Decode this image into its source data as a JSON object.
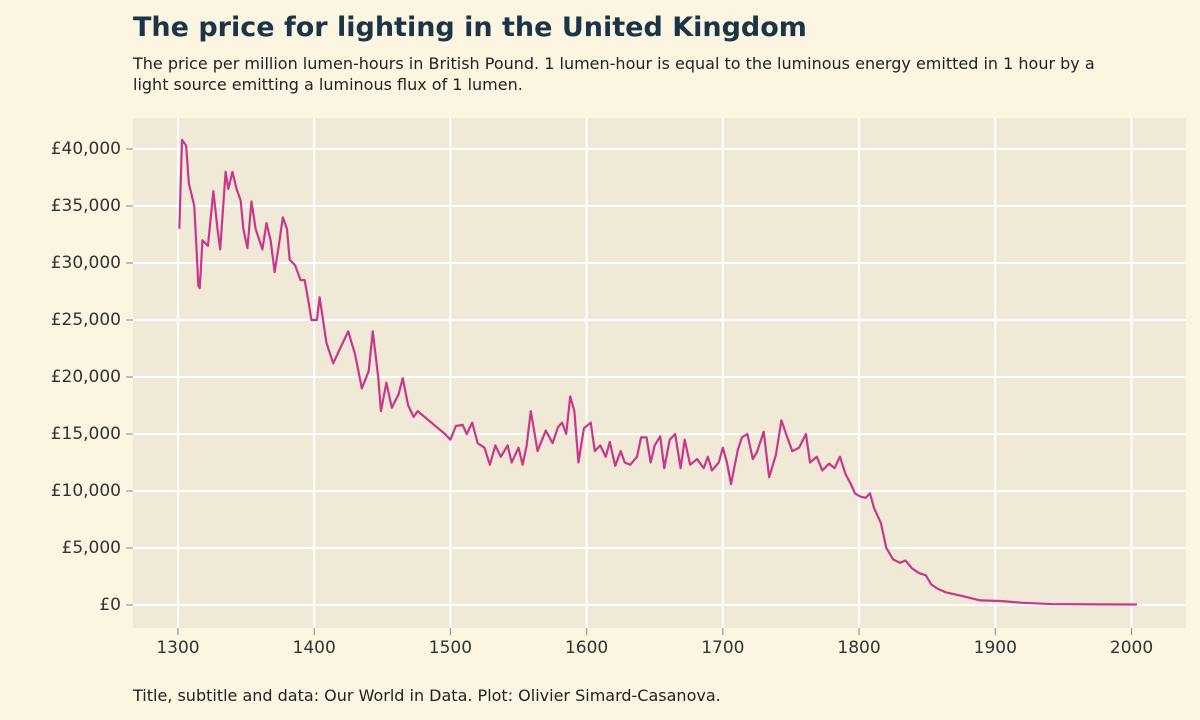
{
  "chart_data": {
    "type": "line",
    "title": "The price for lighting in the United Kingdom",
    "subtitle": "The price per million lumen-hours in British Pound. 1 lumen-hour is equal to the luminous energy emitted in 1 hour by a light source emitting a luminous flux of 1 lumen.",
    "caption": "Title, subtitle and data: Our World in Data. Plot: Olivier Simard-Casanova.",
    "color": "#c9378a",
    "background": "#f0e9d8",
    "grid": true,
    "xlim": [
      1267,
      2040
    ],
    "ylim": [
      -2020,
      42720
    ],
    "xticks": [
      1300,
      1400,
      1500,
      1600,
      1700,
      1800,
      1900,
      2000
    ],
    "yticks": [
      {
        "value": 0,
        "label": "£0"
      },
      {
        "value": 5000,
        "label": "£5,000"
      },
      {
        "value": 10000,
        "label": "£10,000"
      },
      {
        "value": 15000,
        "label": "£15,000"
      },
      {
        "value": 20000,
        "label": "£20,000"
      },
      {
        "value": 25000,
        "label": "£25,000"
      },
      {
        "value": 30000,
        "label": "£30,000"
      },
      {
        "value": 35000,
        "label": "£35,000"
      },
      {
        "value": 40000,
        "label": "£40,000"
      }
    ],
    "x": [
      1301,
      1303,
      1306,
      1308,
      1312,
      1315,
      1316,
      1318,
      1322,
      1326,
      1329,
      1331,
      1335,
      1337,
      1340,
      1343,
      1346,
      1348,
      1351,
      1354,
      1357,
      1362,
      1365,
      1368,
      1371,
      1374,
      1377,
      1380,
      1382,
      1386,
      1390,
      1393,
      1396,
      1398,
      1402,
      1404,
      1409,
      1414,
      1419,
      1425,
      1430,
      1435,
      1440,
      1443,
      1447,
      1449,
      1453,
      1457,
      1462,
      1465,
      1469,
      1473,
      1476,
      1481,
      1486,
      1491,
      1496,
      1500,
      1504,
      1509,
      1512,
      1516,
      1520,
      1525,
      1529,
      1533,
      1537,
      1542,
      1545,
      1550,
      1553,
      1556,
      1559,
      1564,
      1570,
      1575,
      1579,
      1582,
      1585,
      1588,
      1591,
      1594,
      1598,
      1603,
      1606,
      1610,
      1614,
      1617,
      1621,
      1625,
      1628,
      1632,
      1637,
      1640,
      1644,
      1647,
      1650,
      1654,
      1657,
      1661,
      1665,
      1669,
      1672,
      1676,
      1681,
      1686,
      1689,
      1692,
      1697,
      1700,
      1703,
      1706,
      1711,
      1714,
      1718,
      1722,
      1725,
      1730,
      1734,
      1739,
      1743,
      1747,
      1751,
      1756,
      1761,
      1764,
      1769,
      1773,
      1778,
      1782,
      1786,
      1790,
      1794,
      1797,
      1801,
      1805,
      1808,
      1811,
      1816,
      1820,
      1825,
      1830,
      1834,
      1839,
      1844,
      1849,
      1853,
      1858,
      1864,
      1875,
      1889,
      1904,
      1919,
      1941,
      1977,
      2004
    ],
    "values": [
      33000,
      40800,
      40300,
      37000,
      35000,
      28000,
      27800,
      32000,
      31500,
      36300,
      33000,
      31200,
      38000,
      36500,
      38000,
      36500,
      35500,
      33000,
      31300,
      35400,
      33000,
      31200,
      33500,
      32000,
      29200,
      31500,
      34000,
      33000,
      30300,
      29800,
      28500,
      28500,
      26500,
      25000,
      25000,
      27000,
      23000,
      21200,
      22500,
      24000,
      22000,
      19000,
      20500,
      24000,
      20000,
      17000,
      19500,
      17300,
      18500,
      19900,
      17500,
      16500,
      17000,
      16500,
      16000,
      15500,
      15000,
      14500,
      15700,
      15800,
      15000,
      16000,
      14200,
      13800,
      12300,
      14000,
      13000,
      14000,
      12500,
      13800,
      12300,
      14000,
      17000,
      13500,
      15300,
      14200,
      15600,
      16000,
      15000,
      18300,
      17000,
      12500,
      15500,
      16000,
      13500,
      14000,
      13000,
      14300,
      12200,
      13500,
      12500,
      12300,
      13000,
      14700,
      14700,
      12500,
      14000,
      14800,
      12000,
      14500,
      15000,
      12000,
      14500,
      12300,
      12800,
      12000,
      13000,
      11800,
      12500,
      13800,
      12500,
      10600,
      13600,
      14700,
      15000,
      12800,
      13400,
      15200,
      11200,
      13200,
      16200,
      14800,
      13500,
      13800,
      15000,
      12500,
      13000,
      11800,
      12400,
      12000,
      13000,
      11500,
      10600,
      9800,
      9500,
      9400,
      9800,
      8500,
      7200,
      5000,
      4000,
      3700,
      3900,
      3200,
      2800,
      2600,
      1800,
      1400,
      1100,
      800,
      400,
      350,
      200,
      80,
      50,
      40
    ]
  }
}
